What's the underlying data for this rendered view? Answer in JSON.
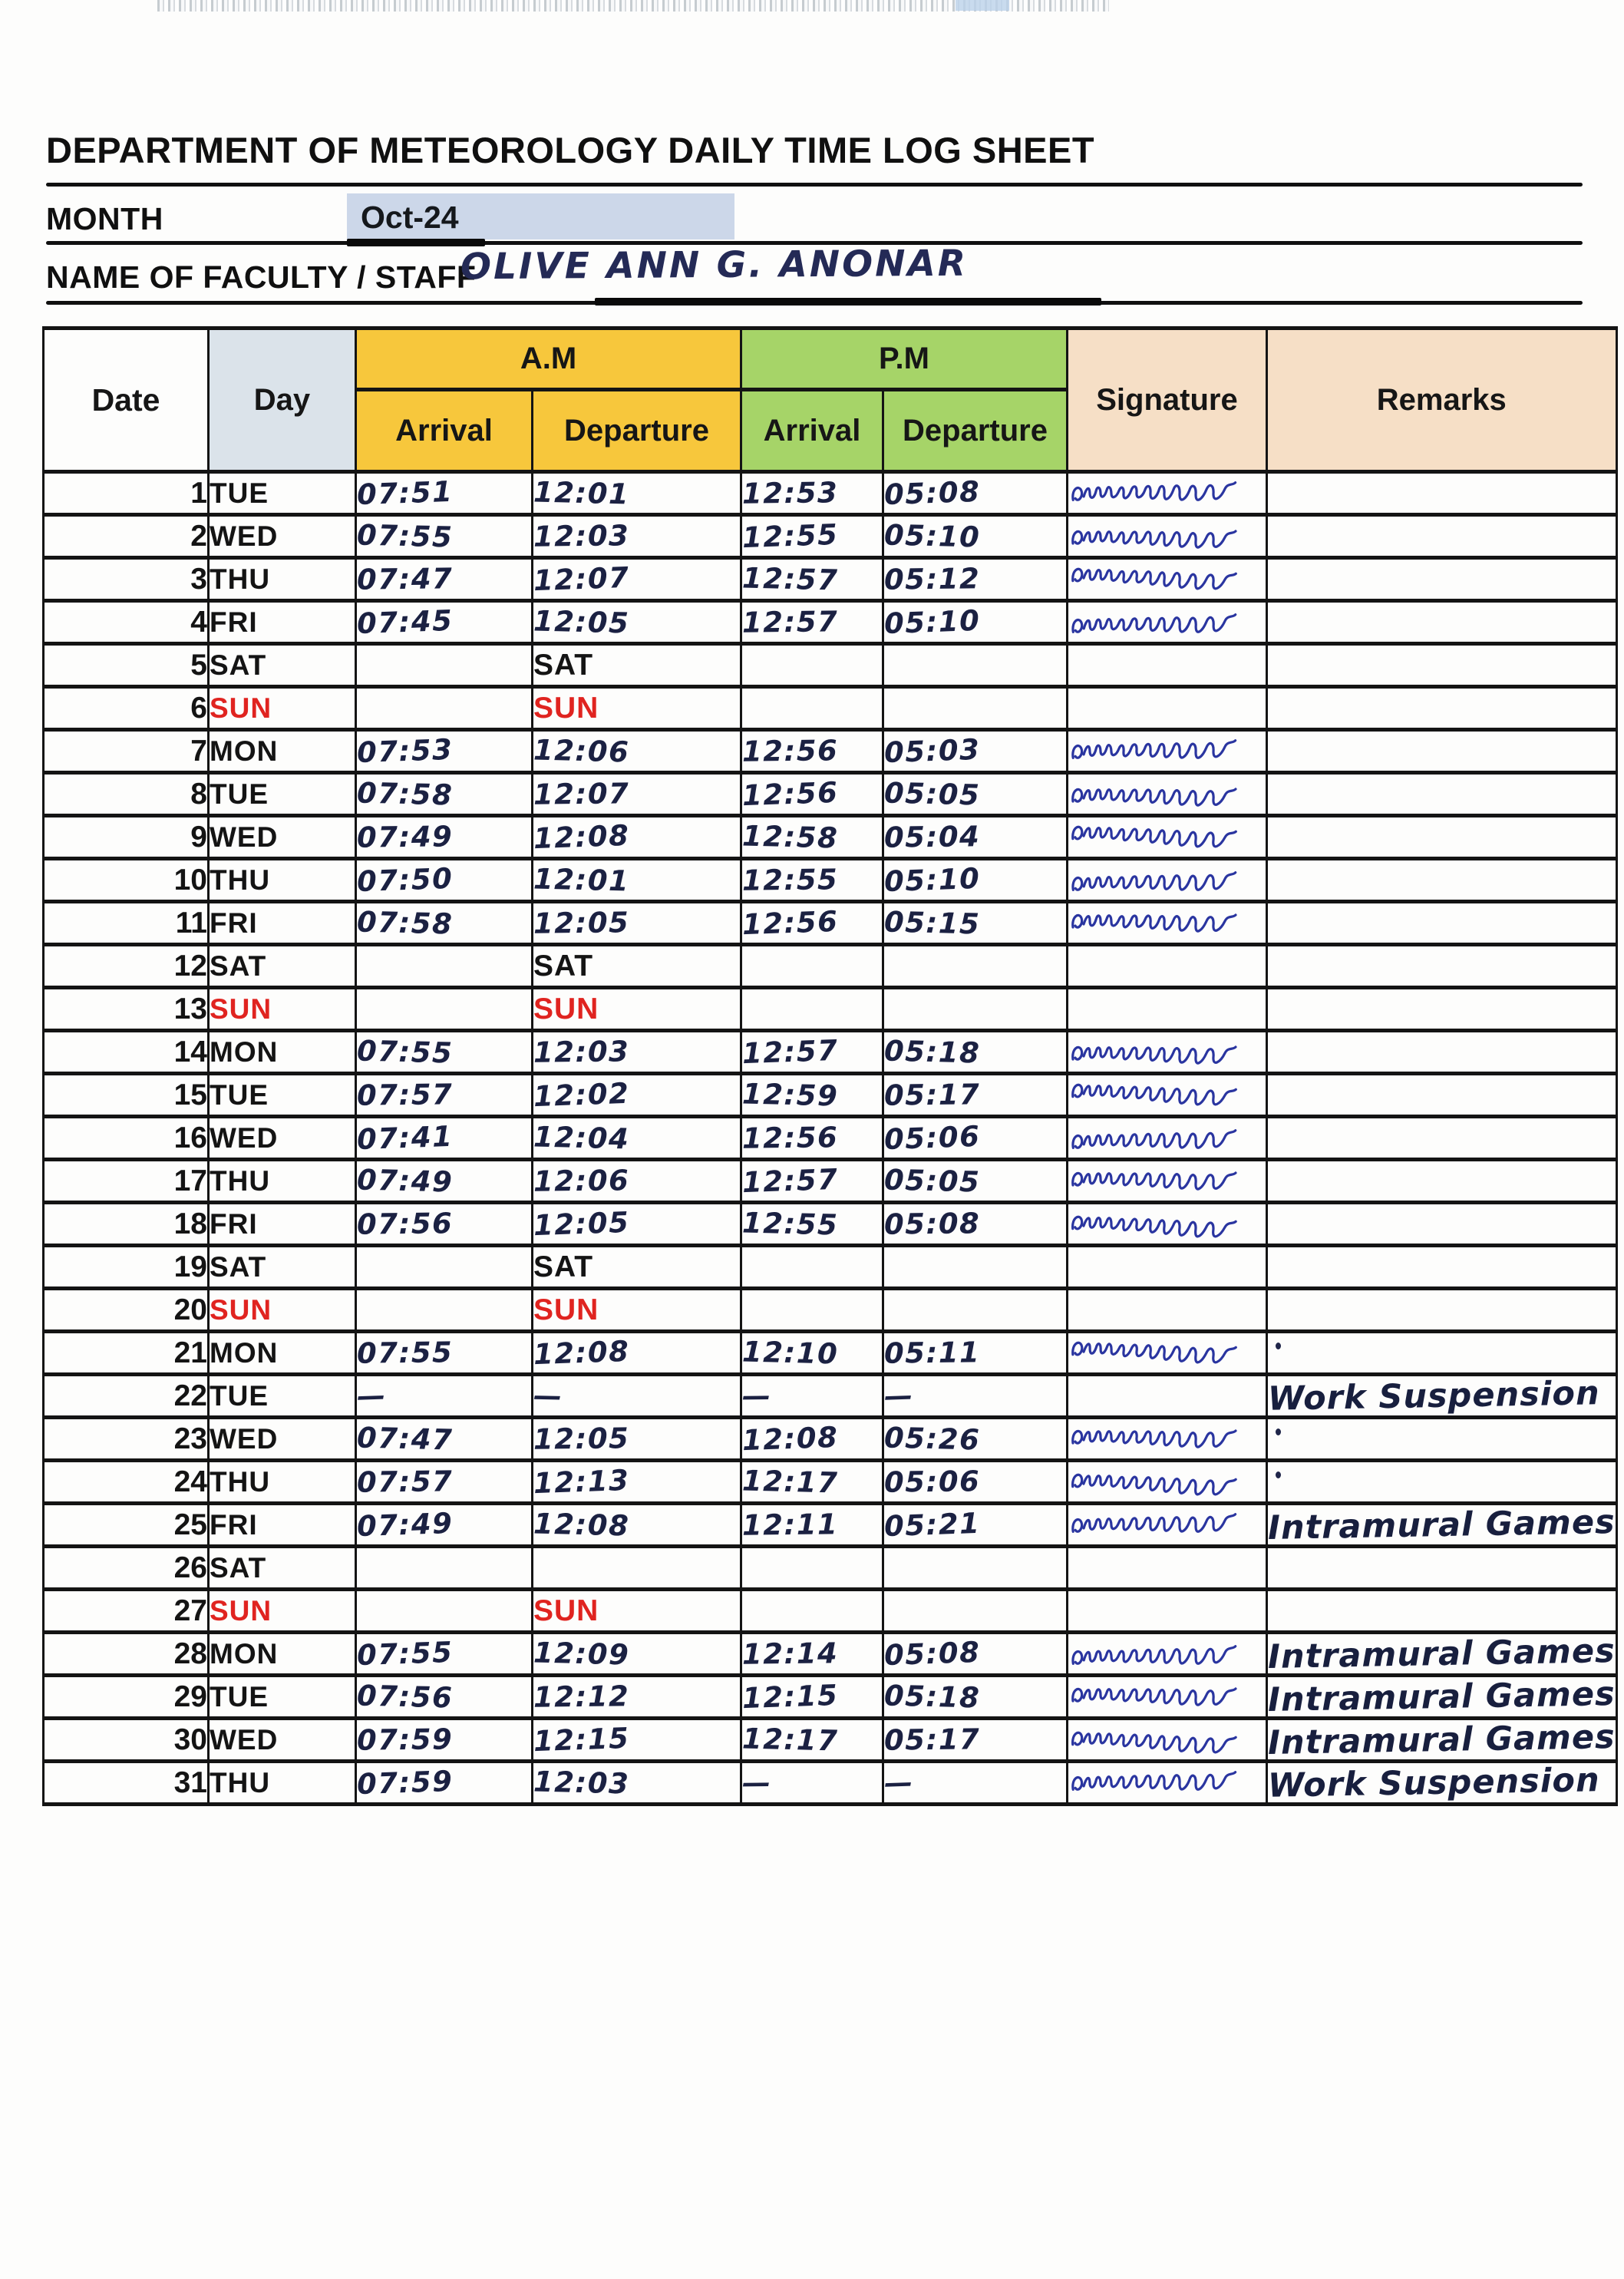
{
  "header": {
    "title": "DEPARTMENT OF METEOROLOGY DAILY TIME LOG SHEET",
    "month_label": "MONTH",
    "month_value": "Oct-24",
    "name_label": "NAME OF FACULTY / STAFF",
    "name_value": "OLIVE ANN G. ANONAR"
  },
  "table": {
    "head": {
      "date": "Date",
      "day": "Day",
      "am": "A.M",
      "pm": "P.M",
      "arrival": "Arrival",
      "departure": "Departure",
      "signature": "Signature",
      "remarks": "Remarks"
    },
    "rows": [
      {
        "date": 1,
        "day": "TUE",
        "am_arrival": "07:51",
        "am_departure": "12:01",
        "pm_arrival": "12:53",
        "pm_departure": "05:08",
        "signature": true,
        "remark": "",
        "remark_dot": false
      },
      {
        "date": 2,
        "day": "WED",
        "am_arrival": "07:55",
        "am_departure": "12:03",
        "pm_arrival": "12:55",
        "pm_departure": "05:10",
        "signature": true,
        "remark": "",
        "remark_dot": false
      },
      {
        "date": 3,
        "day": "THU",
        "am_arrival": "07:47",
        "am_departure": "12:07",
        "pm_arrival": "12:57",
        "pm_departure": "05:12",
        "signature": true,
        "remark": "",
        "remark_dot": false
      },
      {
        "date": 4,
        "day": "FRI",
        "am_arrival": "07:45",
        "am_departure": "12:05",
        "pm_arrival": "12:57",
        "pm_departure": "05:10",
        "signature": true,
        "remark": "",
        "remark_dot": false
      },
      {
        "date": 5,
        "day": "SAT",
        "am_arrival": "",
        "am_departure": "SAT",
        "pm_arrival": "",
        "pm_departure": "",
        "signature": false,
        "remark": "",
        "remark_dot": false
      },
      {
        "date": 6,
        "day": "SUN",
        "am_arrival": "",
        "am_departure": "SUN",
        "pm_arrival": "",
        "pm_departure": "",
        "signature": false,
        "remark": "",
        "remark_dot": false
      },
      {
        "date": 7,
        "day": "MON",
        "am_arrival": "07:53",
        "am_departure": "12:06",
        "pm_arrival": "12:56",
        "pm_departure": "05:03",
        "signature": true,
        "remark": "",
        "remark_dot": false
      },
      {
        "date": 8,
        "day": "TUE",
        "am_arrival": "07:58",
        "am_departure": "12:07",
        "pm_arrival": "12:56",
        "pm_departure": "05:05",
        "signature": true,
        "remark": "",
        "remark_dot": false
      },
      {
        "date": 9,
        "day": "WED",
        "am_arrival": "07:49",
        "am_departure": "12:08",
        "pm_arrival": "12:58",
        "pm_departure": "05:04",
        "signature": true,
        "remark": "",
        "remark_dot": false
      },
      {
        "date": 10,
        "day": "THU",
        "am_arrival": "07:50",
        "am_departure": "12:01",
        "pm_arrival": "12:55",
        "pm_departure": "05:10",
        "signature": true,
        "remark": "",
        "remark_dot": false
      },
      {
        "date": 11,
        "day": "FRI",
        "am_arrival": "07:58",
        "am_departure": "12:05",
        "pm_arrival": "12:56",
        "pm_departure": "05:15",
        "signature": true,
        "remark": "",
        "remark_dot": false
      },
      {
        "date": 12,
        "day": "SAT",
        "am_arrival": "",
        "am_departure": "SAT",
        "pm_arrival": "",
        "pm_departure": "",
        "signature": false,
        "remark": "",
        "remark_dot": false
      },
      {
        "date": 13,
        "day": "SUN",
        "am_arrival": "",
        "am_departure": "SUN",
        "pm_arrival": "",
        "pm_departure": "",
        "signature": false,
        "remark": "",
        "remark_dot": false
      },
      {
        "date": 14,
        "day": "MON",
        "am_arrival": "07:55",
        "am_departure": "12:03",
        "pm_arrival": "12:57",
        "pm_departure": "05:18",
        "signature": true,
        "remark": "",
        "remark_dot": false
      },
      {
        "date": 15,
        "day": "TUE",
        "am_arrival": "07:57",
        "am_departure": "12:02",
        "pm_arrival": "12:59",
        "pm_departure": "05:17",
        "signature": true,
        "remark": "",
        "remark_dot": false
      },
      {
        "date": 16,
        "day": "WED",
        "am_arrival": "07:41",
        "am_departure": "12:04",
        "pm_arrival": "12:56",
        "pm_departure": "05:06",
        "signature": true,
        "remark": "",
        "remark_dot": false
      },
      {
        "date": 17,
        "day": "THU",
        "am_arrival": "07:49",
        "am_departure": "12:06",
        "pm_arrival": "12:57",
        "pm_departure": "05:05",
        "signature": true,
        "remark": "",
        "remark_dot": false
      },
      {
        "date": 18,
        "day": "FRI",
        "am_arrival": "07:56",
        "am_departure": "12:05",
        "pm_arrival": "12:55",
        "pm_departure": "05:08",
        "signature": true,
        "remark": "",
        "remark_dot": false
      },
      {
        "date": 19,
        "day": "SAT",
        "am_arrival": "",
        "am_departure": "SAT",
        "pm_arrival": "",
        "pm_departure": "",
        "signature": false,
        "remark": "",
        "remark_dot": false
      },
      {
        "date": 20,
        "day": "SUN",
        "am_arrival": "",
        "am_departure": "SUN",
        "pm_arrival": "",
        "pm_departure": "",
        "signature": false,
        "remark": "",
        "remark_dot": false
      },
      {
        "date": 21,
        "day": "MON",
        "am_arrival": "07:55",
        "am_departure": "12:08",
        "pm_arrival": "12:10",
        "pm_departure": "05:11",
        "signature": true,
        "remark": "",
        "remark_dot": true
      },
      {
        "date": 22,
        "day": "TUE",
        "am_arrival": "—",
        "am_departure": "—",
        "pm_arrival": "—",
        "pm_departure": "—",
        "signature": false,
        "remark": "Work Suspension",
        "remark_dot": false
      },
      {
        "date": 23,
        "day": "WED",
        "am_arrival": "07:47",
        "am_departure": "12:05",
        "pm_arrival": "12:08",
        "pm_departure": "05:26",
        "signature": true,
        "remark": "",
        "remark_dot": true
      },
      {
        "date": 24,
        "day": "THU",
        "am_arrival": "07:57",
        "am_departure": "12:13",
        "pm_arrival": "12:17",
        "pm_departure": "05:06",
        "signature": true,
        "remark": "",
        "remark_dot": true
      },
      {
        "date": 25,
        "day": "FRI",
        "am_arrival": "07:49",
        "am_departure": "12:08",
        "pm_arrival": "12:11",
        "pm_departure": "05:21",
        "signature": true,
        "remark": "Intramural Games",
        "remark_dot": false
      },
      {
        "date": 26,
        "day": "SAT",
        "am_arrival": "",
        "am_departure": "",
        "pm_arrival": "",
        "pm_departure": "",
        "signature": false,
        "remark": "",
        "remark_dot": false
      },
      {
        "date": 27,
        "day": "SUN",
        "am_arrival": "",
        "am_departure": "SUN",
        "pm_arrival": "",
        "pm_departure": "",
        "signature": false,
        "remark": "",
        "remark_dot": false
      },
      {
        "date": 28,
        "day": "MON",
        "am_arrival": "07:55",
        "am_departure": "12:09",
        "pm_arrival": "12:14",
        "pm_departure": "05:08",
        "signature": true,
        "remark": "Intramural Games",
        "remark_dot": false
      },
      {
        "date": 29,
        "day": "TUE",
        "am_arrival": "07:56",
        "am_departure": "12:12",
        "pm_arrival": "12:15",
        "pm_departure": "05:18",
        "signature": true,
        "remark": "Intramural Games",
        "remark_dot": false
      },
      {
        "date": 30,
        "day": "WED",
        "am_arrival": "07:59",
        "am_departure": "12:15",
        "pm_arrival": "12:17",
        "pm_departure": "05:17",
        "signature": true,
        "remark": "Intramural Games",
        "remark_dot": false
      },
      {
        "date": 31,
        "day": "THU",
        "am_arrival": "07:59",
        "am_departure": "12:03",
        "pm_arrival": "—",
        "pm_departure": "—",
        "signature": true,
        "remark": "Work Suspension",
        "remark_dot": false
      }
    ]
  },
  "colors": {
    "am_header": "#f7c73c",
    "pm_header": "#a6d468",
    "day_header": "#dbe3ea",
    "signature_remarks_header": "#f6dfc6",
    "month_highlight": "#ccd7e9",
    "sunday_red": "#e02420",
    "handwriting_ink": "#1b2142",
    "signature_ink": "#2a35a0"
  }
}
